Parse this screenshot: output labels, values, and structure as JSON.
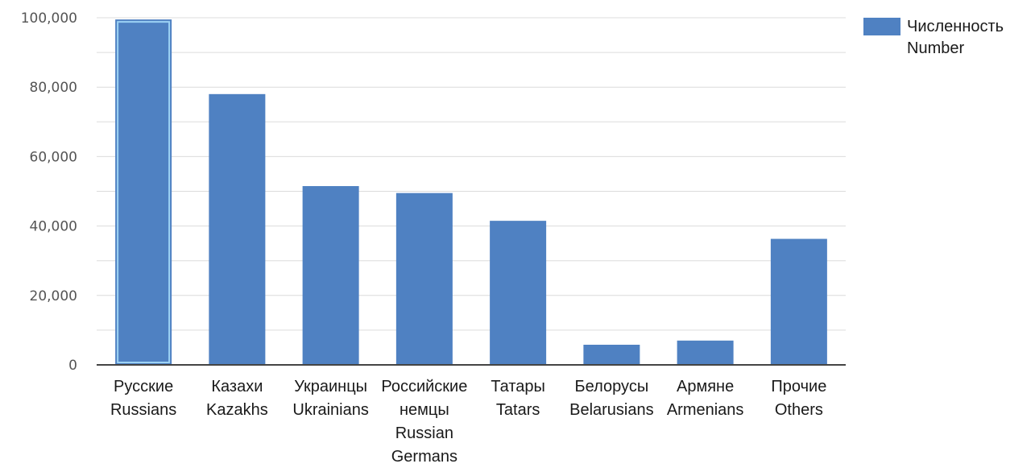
{
  "chart_data": {
    "type": "bar",
    "categories": [
      [
        "Русские",
        "Russians"
      ],
      [
        "Казахи",
        "Kazakhs"
      ],
      [
        "Украинцы",
        "Ukrainians"
      ],
      [
        "Российские",
        "немцы",
        "Russian",
        "Germans"
      ],
      [
        "Татары",
        "Tatars"
      ],
      [
        "Белорусы",
        "Belarusians"
      ],
      [
        "Армяне",
        "Armenians"
      ],
      [
        "Прочие",
        "Others"
      ]
    ],
    "series": [
      {
        "name": [
          "Численность",
          "Number"
        ],
        "values": [
          99500,
          78000,
          51500,
          49500,
          41500,
          5800,
          7000,
          36300
        ]
      }
    ],
    "highlighted_index": 0,
    "ylim": [
      0,
      100000
    ],
    "y_ticks": [
      0,
      20000,
      40000,
      60000,
      80000,
      100000
    ],
    "y_tick_labels": [
      "0",
      "20,000",
      "40,000",
      "60,000",
      "80,000",
      "100,000"
    ],
    "grid": true,
    "legend": "top-right",
    "xlabel": "",
    "ylabel": "",
    "title": ""
  },
  "colors": {
    "bar": "#4f81c2",
    "highlight_border": "#9dd3f5",
    "grid": "#dcdcdc",
    "axis": "#444444"
  }
}
